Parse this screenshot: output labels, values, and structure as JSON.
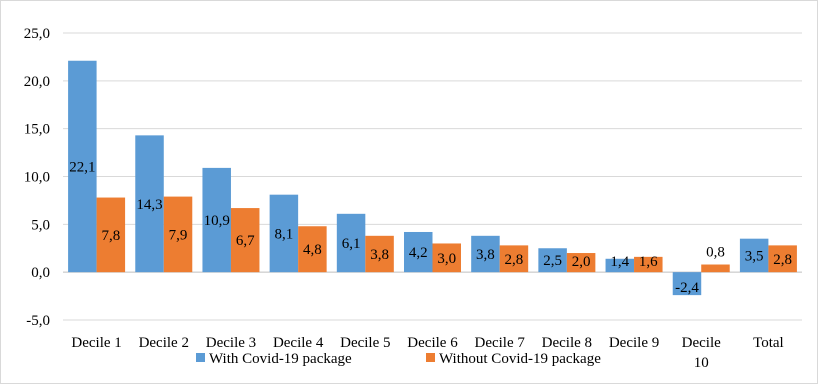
{
  "chart_data": {
    "type": "bar",
    "title": "",
    "xlabel": "",
    "ylabel": "",
    "ylim": [
      -5,
      25
    ],
    "y_ticks": [
      "-5,0",
      "0,0",
      "5,0",
      "10,0",
      "15,0",
      "20,0",
      "25,0"
    ],
    "y_tick_values": [
      -5,
      0,
      5,
      10,
      15,
      20,
      25
    ],
    "grid": true,
    "legend_position": "bottom",
    "categories": [
      "Decile 1",
      "Decile 2",
      "Decile 3",
      "Decile 4",
      "Decile 5",
      "Decile 6",
      "Decile 7",
      "Decile 8",
      "Decile 9",
      "Decile 10",
      "Total"
    ],
    "series": [
      {
        "name": "With Covid-19 package",
        "color": "#5B9BD5",
        "values": [
          22.1,
          14.3,
          10.9,
          8.1,
          6.1,
          4.2,
          3.8,
          2.5,
          1.4,
          -2.4,
          3.5
        ],
        "labels": [
          "22,1",
          "14,3",
          "10,9",
          "8,1",
          "6,1",
          "4,2",
          "3,8",
          "2,5",
          "1,4",
          "-2,4",
          "3,5"
        ]
      },
      {
        "name": "Without Covid-19 package",
        "color": "#ED7D31",
        "values": [
          7.8,
          7.9,
          6.7,
          4.8,
          3.8,
          3.0,
          2.8,
          2.0,
          1.6,
          0.8,
          2.8
        ],
        "labels": [
          "7,8",
          "7,9",
          "6,7",
          "4,8",
          "3,8",
          "3,0",
          "2,8",
          "2,0",
          "1,6",
          "0,8",
          "2,8"
        ]
      }
    ]
  }
}
